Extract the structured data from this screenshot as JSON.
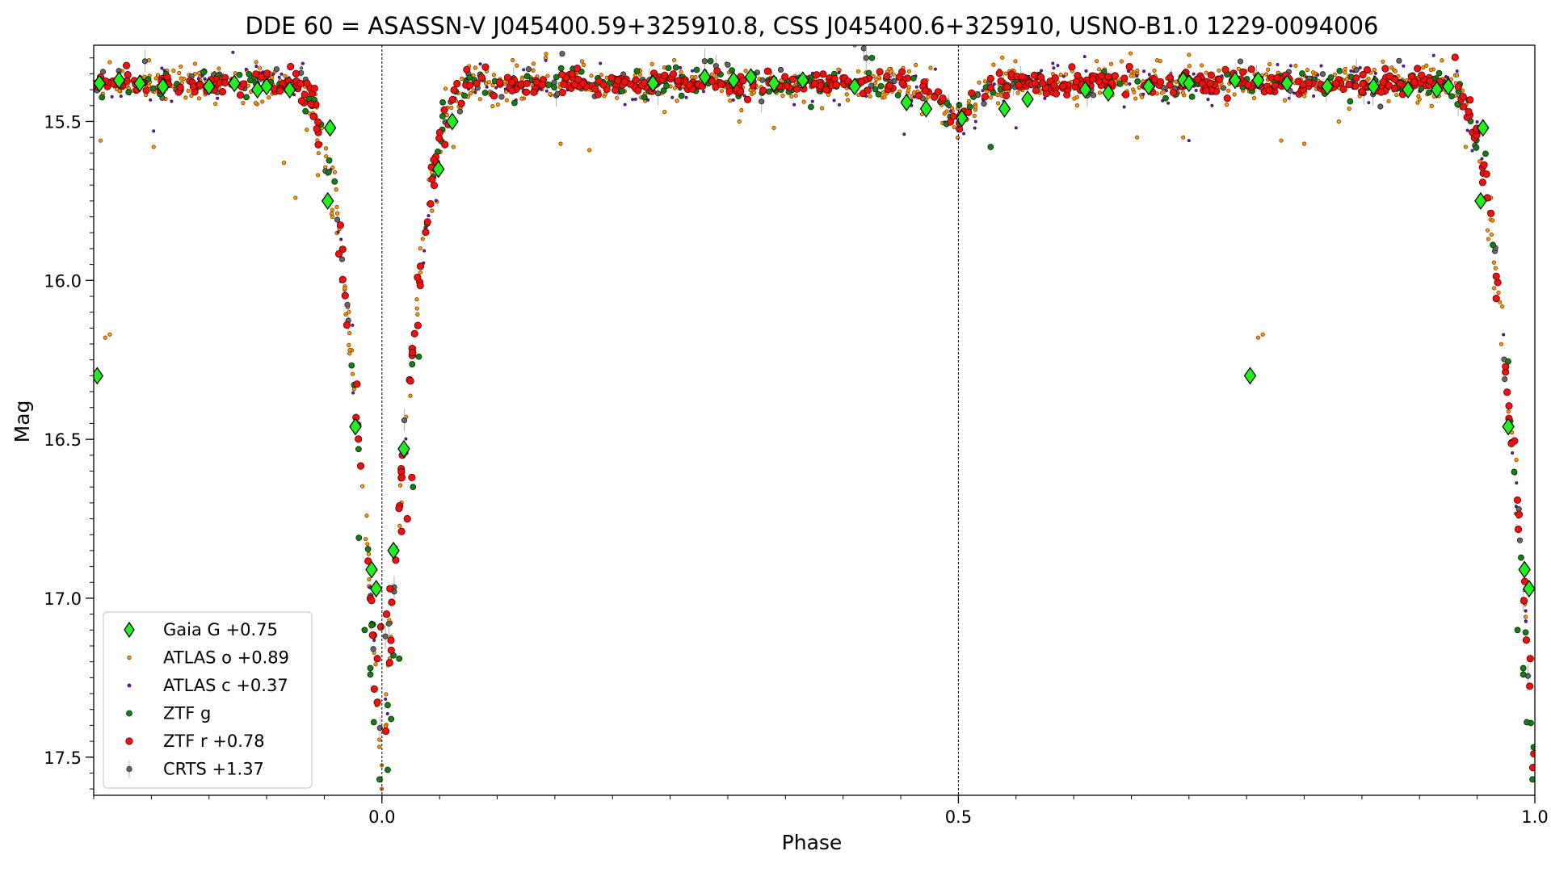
{
  "chart_data": {
    "type": "scatter",
    "title": "DDE 60 = ASASSN-V J045400.59+325910.8, CSS J045400.6+325910, USNO-B1.0 1229-0094006",
    "xlabel": "Phase",
    "ylabel": "Mag",
    "xlim": [
      -0.25,
      1.0
    ],
    "ylim": [
      17.62,
      15.26
    ],
    "y_inverted": true,
    "x_ticks": [
      0.0,
      0.5,
      1.0
    ],
    "x_tick_labels": [
      "0.0",
      "0.5",
      "1.0"
    ],
    "y_ticks": [
      15.5,
      16.0,
      16.5,
      17.0,
      17.5
    ],
    "y_tick_labels": [
      "15.5",
      "16.0",
      "16.5",
      "17.0",
      "17.5"
    ],
    "reference_lines_x": [
      0.0,
      0.5
    ],
    "grid": false,
    "legend_position": "lower-left",
    "light_curve_model": {
      "baseline_mag": 15.38,
      "primary_eclipse": {
        "phase": 0.0,
        "depth_mag": 2.2,
        "halfwidth_phase": 0.075
      },
      "secondary_eclipse": {
        "phase": 0.5,
        "depth_mag": 0.12,
        "halfwidth_phase": 0.05
      }
    },
    "series": [
      {
        "name": "Gaia G +0.75",
        "marker": "diamond",
        "color": "#22ee22",
        "edge": "#000000",
        "points": [
          [
            -0.245,
            15.38
          ],
          [
            -0.228,
            15.37
          ],
          [
            -0.21,
            15.38
          ],
          [
            -0.19,
            15.39
          ],
          [
            -0.15,
            15.39
          ],
          [
            -0.128,
            15.38
          ],
          [
            -0.108,
            15.4
          ],
          [
            -0.1,
            15.39
          ],
          [
            -0.08,
            15.4
          ],
          [
            -0.045,
            15.52
          ],
          [
            -0.047,
            15.75
          ],
          [
            -0.023,
            16.46
          ],
          [
            -0.009,
            16.91
          ],
          [
            -0.005,
            16.97
          ],
          [
            0.01,
            16.85
          ],
          [
            0.019,
            16.53
          ],
          [
            0.049,
            15.65
          ],
          [
            0.061,
            15.5
          ],
          [
            0.235,
            15.38
          ],
          [
            0.28,
            15.36
          ],
          [
            0.305,
            15.37
          ],
          [
            0.32,
            15.36
          ],
          [
            0.34,
            15.38
          ],
          [
            0.365,
            15.37
          ],
          [
            0.41,
            15.39
          ],
          [
            0.455,
            15.44
          ],
          [
            0.472,
            15.46
          ],
          [
            0.503,
            15.49
          ],
          [
            0.54,
            15.46
          ],
          [
            0.56,
            15.43
          ],
          [
            0.61,
            15.4
          ],
          [
            0.63,
            15.41
          ],
          [
            0.665,
            15.39
          ],
          [
            0.695,
            15.37
          ],
          [
            0.7,
            15.38
          ],
          [
            0.74,
            15.37
          ],
          [
            0.76,
            15.37
          ],
          [
            0.785,
            15.38
          ],
          [
            0.82,
            15.39
          ],
          [
            0.86,
            15.39
          ],
          [
            0.89,
            15.4
          ],
          [
            0.915,
            15.4
          ],
          [
            0.925,
            15.39
          ],
          [
            -0.247,
            16.3
          ],
          [
            0.753,
            16.3
          ],
          [
            0.955,
            15.52
          ],
          [
            0.953,
            15.75
          ],
          [
            0.977,
            16.46
          ],
          [
            0.991,
            16.91
          ],
          [
            0.995,
            16.97
          ]
        ]
      },
      {
        "name": "ATLAS o +0.89",
        "marker": "circle",
        "color": "#ff9900",
        "edge": "#7a3a00",
        "size": 2.2,
        "model_points": 950,
        "scatter_mag": 0.028,
        "seed": 101,
        "extra": [
          [
            -0.244,
            15.56
          ],
          [
            -0.24,
            16.18
          ],
          [
            -0.236,
            16.17
          ],
          [
            -0.198,
            15.58
          ],
          [
            -0.085,
            15.63
          ],
          [
            -0.075,
            15.74
          ],
          [
            0.14,
            15.25
          ],
          [
            0.142,
            15.3
          ],
          [
            0.155,
            15.57
          ],
          [
            0.18,
            15.59
          ],
          [
            0.245,
            15.33
          ],
          [
            0.31,
            15.5
          ],
          [
            0.34,
            15.52
          ],
          [
            0.41,
            15.26
          ],
          [
            0.59,
            15.38
          ],
          [
            0.62,
            15.31
          ],
          [
            0.655,
            15.55
          ],
          [
            0.67,
            15.34
          ],
          [
            0.675,
            15.31
          ],
          [
            0.7,
            15.29
          ],
          [
            0.695,
            15.55
          ],
          [
            0.76,
            16.18
          ],
          [
            0.764,
            16.17
          ],
          [
            0.78,
            15.56
          ],
          [
            0.8,
            15.57
          ],
          [
            0.83,
            15.5
          ],
          [
            0.9,
            15.43
          ],
          [
            0.94,
            15.58
          ],
          [
            0.962,
            15.74
          ]
        ]
      },
      {
        "name": "ATLAS c +0.37",
        "marker": "circle",
        "color": "#6a1fa0",
        "edge": "#3d0f60",
        "size": 1.6,
        "model_points": 260,
        "scatter_mag": 0.035,
        "seed": 202,
        "extra": [
          [
            -0.198,
            15.53
          ],
          [
            0.205,
            15.41
          ],
          [
            0.22,
            15.43
          ],
          [
            0.42,
            15.42
          ],
          [
            0.453,
            15.54
          ],
          [
            0.515,
            15.5
          ],
          [
            0.55,
            15.52
          ],
          [
            0.7,
            15.56
          ],
          [
            0.72,
            15.45
          ]
        ]
      },
      {
        "name": "ZTF g",
        "marker": "circle",
        "color": "#1a7a1a",
        "edge": "#003300",
        "size": 3.5,
        "model_points": 230,
        "scatter_mag": 0.022,
        "seed": 303,
        "extra": [
          [
            -0.015,
            17.1
          ],
          [
            -0.01,
            17.24
          ],
          [
            -0.01,
            17.22
          ],
          [
            -0.007,
            17.39
          ],
          [
            -0.002,
            17.57
          ],
          [
            0.005,
            17.54
          ],
          [
            0.008,
            17.38
          ],
          [
            0.01,
            17.18
          ],
          [
            0.015,
            17.19
          ],
          [
            -0.02,
            16.81
          ],
          [
            0.027,
            16.65
          ],
          [
            0.032,
            16.24
          ],
          [
            0.255,
            15.33
          ],
          [
            0.285,
            15.31
          ],
          [
            0.425,
            15.3
          ],
          [
            0.528,
            15.58
          ],
          [
            0.985,
            17.1
          ],
          [
            0.99,
            17.24
          ],
          [
            0.993,
            17.39
          ],
          [
            0.998,
            17.57
          ],
          [
            0.99,
            17.22
          ]
        ]
      },
      {
        "name": "ZTF r +0.78",
        "marker": "circle",
        "color": "#ee1111",
        "edge": "#550000",
        "size": 4.2,
        "model_points": 620,
        "scatter_mag": 0.018,
        "seed": 404,
        "extra": [
          [
            -0.004,
            17.19
          ],
          [
            -0.001,
            17.09
          ],
          [
            0.004,
            17.05
          ],
          [
            0.007,
            16.97
          ],
          [
            0.012,
            16.88
          ],
          [
            0.017,
            16.79
          ],
          [
            0.022,
            16.75
          ],
          [
            0.026,
            16.62
          ],
          [
            0.996,
            17.19
          ]
        ]
      },
      {
        "name": "CRTS +1.37",
        "marker": "circle",
        "color": "#666666",
        "edge": "#222222",
        "size": 3.2,
        "model_points": 120,
        "scatter_mag": 0.03,
        "seed": 505,
        "extra": [
          [
            0.003,
            17.12
          ],
          [
            0.006,
            17.08
          ],
          [
            0.418,
            15.27
          ],
          [
            0.42,
            15.3
          ],
          [
            0.28,
            15.31
          ]
        ]
      }
    ]
  }
}
